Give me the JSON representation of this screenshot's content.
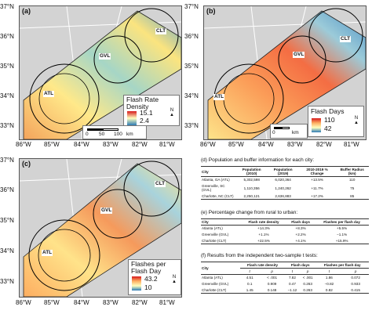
{
  "axes": {
    "lat": [
      "37°N",
      "36°N",
      "35°N",
      "34°N",
      "33°N"
    ],
    "lon": [
      "86°W",
      "85°W",
      "84°W",
      "83°W",
      "82°W",
      "81°W"
    ]
  },
  "panels": {
    "a": {
      "label": "(a)",
      "legend_title_1": "Flash Rate",
      "legend_title_2": "Density",
      "max": "15.1",
      "min": "2.4"
    },
    "b": {
      "label": "(b)",
      "legend_title_1": "Flash Days",
      "legend_title_2": "",
      "max": "110",
      "min": "42"
    },
    "c": {
      "label": "(c)",
      "legend_title_1": "Flashes per",
      "legend_title_2": "Flash Day",
      "max": "43.2",
      "min": "10"
    }
  },
  "cities": {
    "atl": "ATL",
    "gvl": "GVL",
    "clt": "CLT"
  },
  "scale": {
    "zero": "0",
    "fifty": "50",
    "hundred": "100",
    "unit": "km",
    "north": "N"
  },
  "colors": {
    "high": "#d7191c",
    "mid": "#ffffbf",
    "low": "#2c7bb6",
    "land": "#d3d3d3"
  },
  "table_d": {
    "title": "(d) Population and buffer information for each city:",
    "headers": [
      "City",
      "Population (2010)",
      "Population (2019)",
      "2010-2019 % Change",
      "Buffer Radius (km)"
    ],
    "rows": [
      [
        "Atlanta, GA (ATL)",
        "5,302,598",
        "6,020,364",
        "+13.5%",
        "110"
      ],
      [
        "Greenville, SC (GVL)",
        "1,110,356",
        "1,240,262",
        "+11.7%",
        "75"
      ],
      [
        "Charlotte, NC (CLT)",
        "2,250,121",
        "2,636,883",
        "+17.2%",
        "85"
      ]
    ]
  },
  "table_e": {
    "title": "(e) Percentage change from rural to urban:",
    "headers": [
      "City",
      "Flash rate density",
      "Flash days",
      "Flashes per flash day"
    ],
    "rows": [
      [
        "Atlanta (ATL)",
        "+14.3%",
        "+8.3%",
        "+5.5%"
      ],
      [
        "Greenville (GVL)",
        "+1.1%",
        "+2.2%",
        "−1.1%"
      ],
      [
        "Charlotte (CLT)",
        "+22.5%",
        "+4.1%",
        "+15.9%"
      ]
    ]
  },
  "table_f": {
    "title": "(f) Results from the independent two-sample t tests:",
    "headers": [
      "City",
      "Flash rate density",
      "Flash days",
      "Flashes per flash day"
    ],
    "sub": [
      "t",
      "p",
      "t",
      "p",
      "t",
      "p"
    ],
    "rows": [
      [
        "Atlanta (ATL)",
        "4.51",
        "< .001",
        "7.82",
        "< .001",
        "1.86",
        "0.072"
      ],
      [
        "Greenville (GVL)",
        "0.1",
        "0.909",
        "0.47",
        "0.263",
        "−0.82",
        "0.933"
      ],
      [
        "Charlotte (CLT)",
        "1.45",
        "0.148",
        "−1.12",
        "0.263",
        "0.82",
        "0.415"
      ]
    ]
  }
}
